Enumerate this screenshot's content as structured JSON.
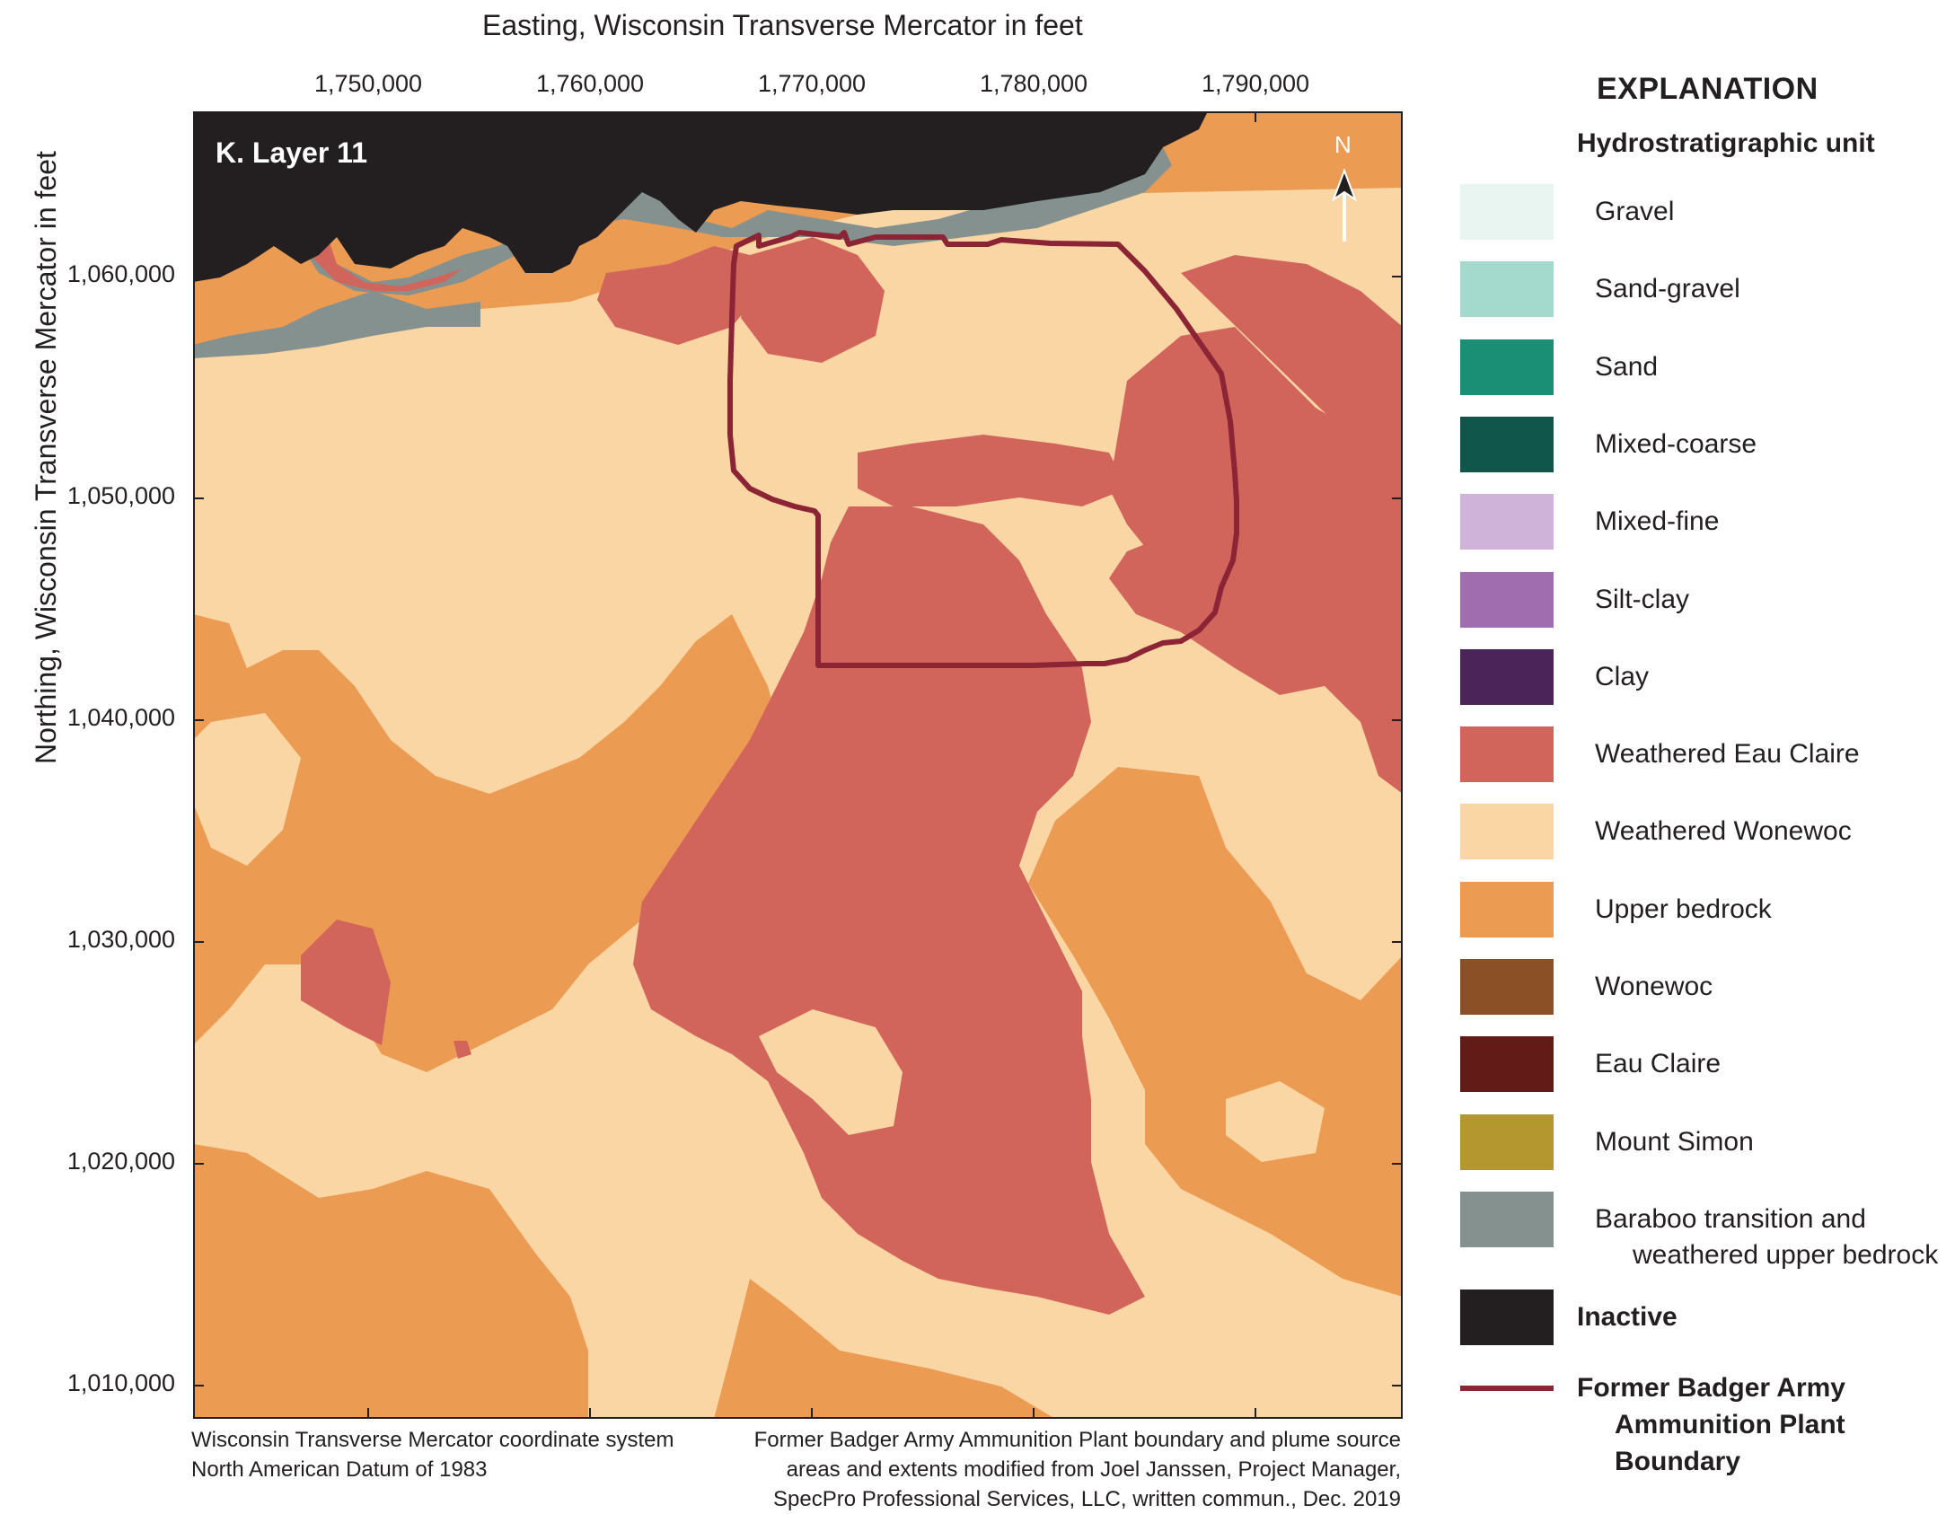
{
  "map": {
    "panel_label": "K. Layer 11",
    "north_label": "N",
    "x_axis_title": "Easting, Wisconsin Transverse Mercator in feet",
    "y_axis_title": "Northing, Wisconsin Transverse Mercator in feet",
    "x_ticks": [
      "1,750,000",
      "1,760,000",
      "1,770,000",
      "1,780,000",
      "1,790,000"
    ],
    "y_ticks": [
      "1,060,000",
      "1,050,000",
      "1,040,000",
      "1,030,000",
      "1,020,000",
      "1,010,000"
    ],
    "note_left": [
      "Wisconsin Transverse Mercator coordinate system",
      "North American Datum of 1983"
    ],
    "note_right": [
      "Former Badger Army Ammunition Plant boundary and plume source",
      "areas and extents modified from Joel Janssen, Project Manager,",
      "SpecPro Professional Services, LLC, written commun., Dec. 2019"
    ]
  },
  "legend": {
    "title": "EXPLANATION",
    "subtitle": "Hydrostratigraphic unit",
    "units": [
      {
        "label": "Gravel",
        "color": "#e8f5f1"
      },
      {
        "label": "Sand-gravel",
        "color": "#a3dacd"
      },
      {
        "label": "Sand",
        "color": "#1a8f76"
      },
      {
        "label": "Mixed-coarse",
        "color": "#11564a"
      },
      {
        "label": "Mixed-fine",
        "color": "#d0b3d8"
      },
      {
        "label": "Silt-clay",
        "color": "#a06daf"
      },
      {
        "label": "Clay",
        "color": "#4b2459"
      },
      {
        "label": "Weathered Eau Claire",
        "color": "#d2655b"
      },
      {
        "label": "Weathered Wonewoc",
        "color": "#fad6a5"
      },
      {
        "label": "Upper bedrock",
        "color": "#eb9b52"
      },
      {
        "label": "Wonewoc",
        "color": "#8c5027"
      },
      {
        "label": "Eau Claire",
        "color": "#621b16"
      },
      {
        "label": "Mount Simon",
        "color": "#b4982f"
      },
      {
        "label": "Baraboo transition and",
        "label2": "weathered upper bedrock",
        "color": "#84918f"
      }
    ],
    "inactive": {
      "label": "Inactive",
      "color": "#231f20"
    },
    "boundary": {
      "label": "Former Badger Army",
      "label2": "Ammunition Plant",
      "label3": "Boundary",
      "color": "#8b2434"
    }
  }
}
